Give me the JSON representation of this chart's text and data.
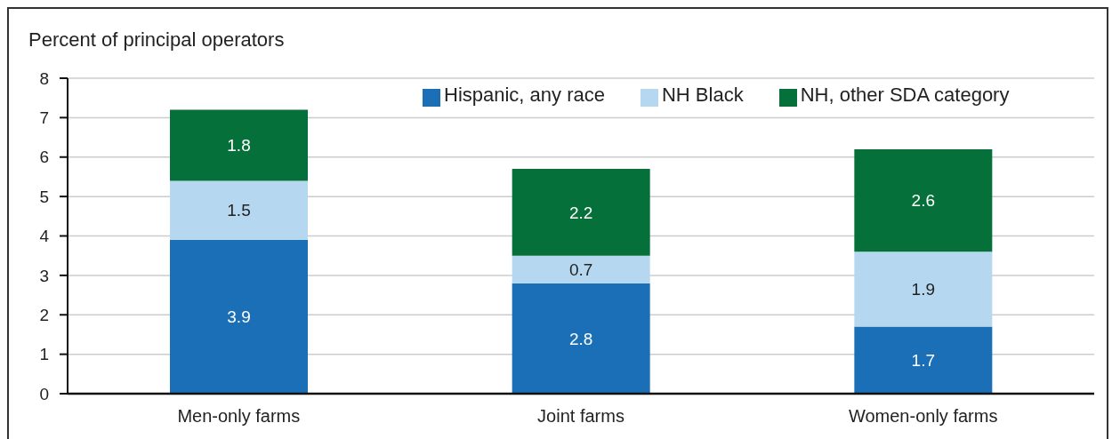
{
  "chart_data": {
    "type": "bar",
    "ylabel": "Percent of principal operators",
    "categories": [
      "Men-only farms",
      "Joint farms",
      "Women-only farms"
    ],
    "series": [
      {
        "name": "Hispanic, any race",
        "color": "#1b6fb6",
        "values": [
          3.9,
          2.8,
          1.7
        ]
      },
      {
        "name": "NH Black",
        "color": "#b5d8f0",
        "values": [
          1.5,
          0.7,
          1.9
        ]
      },
      {
        "name": "NH, other SDA category",
        "color": "#06703a",
        "values": [
          1.8,
          2.2,
          2.6
        ]
      }
    ],
    "stacked": true,
    "ylim": [
      0,
      8
    ],
    "yticks": [
      0,
      1,
      2,
      3,
      4,
      5,
      6,
      7,
      8
    ],
    "grid": "y",
    "legend": "top right",
    "data_labels": true
  }
}
